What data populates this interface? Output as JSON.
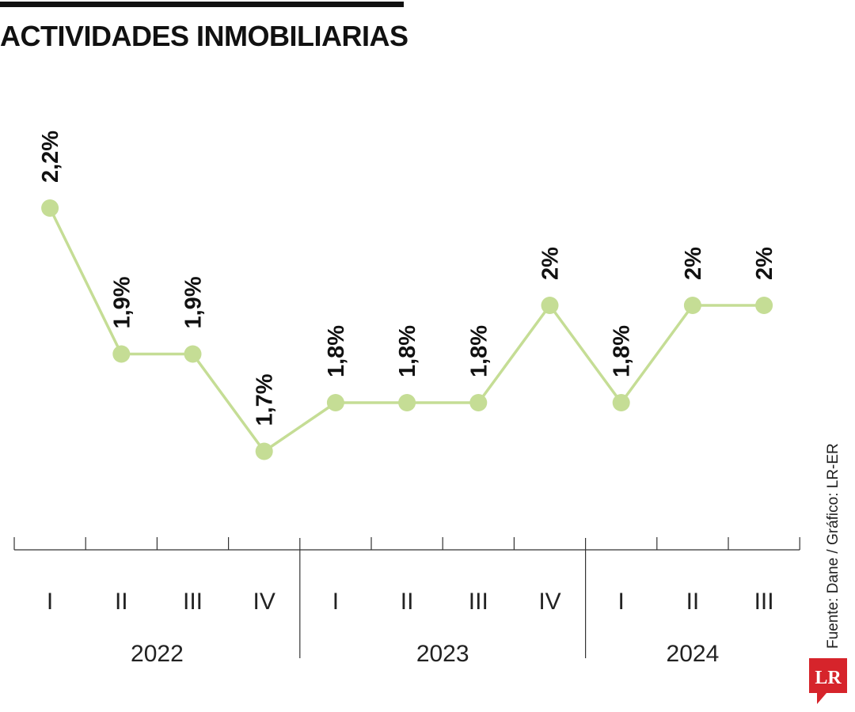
{
  "title": "ACTIVIDADES INMOBILIARIAS",
  "source": "Fuente: Dane / Gráfico: LR-ER",
  "logo_text": "LR",
  "colors": {
    "line": "#c5dd95",
    "point": "#c5dd95",
    "axis": "#333333",
    "text": "#111111",
    "logo": "#d6242b"
  },
  "chart_data": {
    "type": "line",
    "x": [
      "I",
      "II",
      "III",
      "IV",
      "I",
      "II",
      "III",
      "IV",
      "I",
      "II",
      "III"
    ],
    "groups": [
      {
        "label": "2022",
        "count": 4
      },
      {
        "label": "2023",
        "count": 4
      },
      {
        "label": "2024",
        "count": 3
      }
    ],
    "values": [
      2.2,
      1.9,
      1.9,
      1.7,
      1.8,
      1.8,
      1.8,
      2.0,
      1.8,
      2.0,
      2.0
    ],
    "labels": [
      "2,2%",
      "1,9%",
      "1,9%",
      "1,7%",
      "1,8%",
      "1,8%",
      "1,8%",
      "2%",
      "1,8%",
      "2%",
      "2%"
    ],
    "title": "ACTIVIDADES INMOBILIARIAS",
    "xlabel": "",
    "ylabel": "",
    "grid": false,
    "legend": "none"
  }
}
